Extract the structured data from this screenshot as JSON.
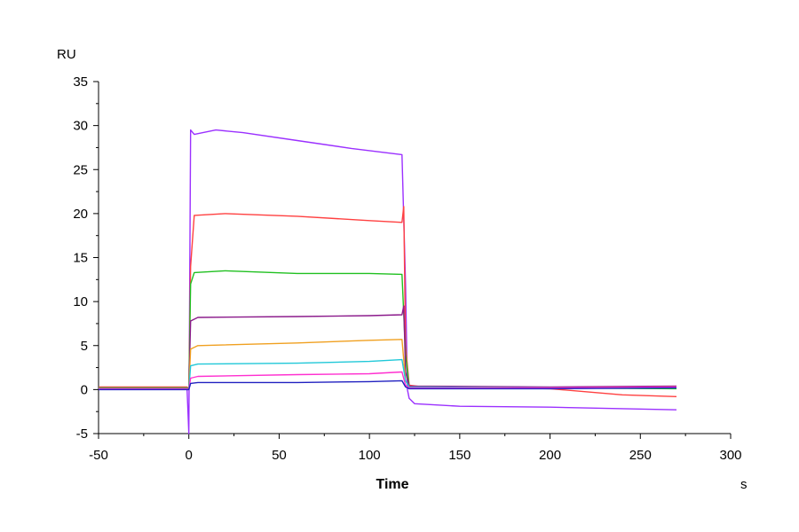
{
  "chart_data": {
    "type": "line",
    "xlabel": "Time",
    "x_unit": "s",
    "y_unit": "RU",
    "xlim": [
      -50,
      300
    ],
    "ylim": [
      -5,
      35
    ],
    "x_ticks": [
      "-50",
      "0",
      "50",
      "100",
      "150",
      "200",
      "250",
      "300"
    ],
    "y_ticks": [
      "-5",
      "0",
      "5",
      "10",
      "15",
      "20",
      "25",
      "30",
      "35"
    ],
    "grid": false,
    "legend": "none",
    "series": [
      {
        "color": "#9b30ff",
        "points": [
          [
            -50,
            0.2
          ],
          [
            -1,
            0.1
          ],
          [
            0,
            -5
          ],
          [
            1,
            29.5
          ],
          [
            3,
            29
          ],
          [
            15,
            29.5
          ],
          [
            30,
            29.2
          ],
          [
            60,
            28.3
          ],
          [
            90,
            27.4
          ],
          [
            118,
            26.7
          ],
          [
            120,
            12
          ],
          [
            121,
            0
          ],
          [
            122,
            -1
          ],
          [
            125,
            -1.6
          ],
          [
            150,
            -1.9
          ],
          [
            200,
            -2.0
          ],
          [
            270,
            -2.3
          ]
        ]
      },
      {
        "color": "#ff4040",
        "points": [
          [
            -50,
            0.3
          ],
          [
            -1,
            0.3
          ],
          [
            0,
            0
          ],
          [
            1,
            14
          ],
          [
            3,
            19.8
          ],
          [
            20,
            20.0
          ],
          [
            60,
            19.7
          ],
          [
            100,
            19.2
          ],
          [
            118,
            19.0
          ],
          [
            119,
            20.8
          ],
          [
            120,
            5
          ],
          [
            122,
            0.5
          ],
          [
            130,
            0.3
          ],
          [
            200,
            0.1
          ],
          [
            240,
            -0.6
          ],
          [
            270,
            -0.8
          ]
        ]
      },
      {
        "color": "#20c020",
        "points": [
          [
            -50,
            0.2
          ],
          [
            -1,
            0.2
          ],
          [
            0,
            0
          ],
          [
            1,
            12
          ],
          [
            3,
            13.3
          ],
          [
            20,
            13.5
          ],
          [
            60,
            13.2
          ],
          [
            100,
            13.2
          ],
          [
            118,
            13.1
          ],
          [
            120,
            4
          ],
          [
            122,
            0.3
          ],
          [
            200,
            0.2
          ],
          [
            270,
            0.1
          ]
        ]
      },
      {
        "color": "#8b1a8b",
        "points": [
          [
            -50,
            0.1
          ],
          [
            -1,
            0.1
          ],
          [
            0,
            0
          ],
          [
            1,
            7.8
          ],
          [
            5,
            8.2
          ],
          [
            60,
            8.3
          ],
          [
            100,
            8.4
          ],
          [
            118,
            8.5
          ],
          [
            119,
            9.5
          ],
          [
            120,
            2
          ],
          [
            122,
            0.4
          ],
          [
            200,
            0.3
          ],
          [
            270,
            0.4
          ]
        ]
      },
      {
        "color": "#f0a020",
        "points": [
          [
            -50,
            0.1
          ],
          [
            -1,
            0.1
          ],
          [
            0,
            0
          ],
          [
            1,
            4.6
          ],
          [
            5,
            5.0
          ],
          [
            60,
            5.3
          ],
          [
            100,
            5.6
          ],
          [
            118,
            5.7
          ],
          [
            120,
            1
          ],
          [
            122,
            0.3
          ],
          [
            200,
            0.2
          ],
          [
            270,
            0.3
          ]
        ]
      },
      {
        "color": "#20c8d8",
        "points": [
          [
            -50,
            0.1
          ],
          [
            -1,
            0.1
          ],
          [
            0,
            0
          ],
          [
            1,
            2.7
          ],
          [
            5,
            2.9
          ],
          [
            60,
            3.0
          ],
          [
            100,
            3.2
          ],
          [
            118,
            3.4
          ],
          [
            120,
            1
          ],
          [
            122,
            0.3
          ],
          [
            200,
            0.2
          ],
          [
            270,
            0.2
          ]
        ]
      },
      {
        "color": "#ff30d0",
        "points": [
          [
            -50,
            0.1
          ],
          [
            -1,
            0.1
          ],
          [
            0,
            0
          ],
          [
            1,
            1.3
          ],
          [
            5,
            1.5
          ],
          [
            60,
            1.7
          ],
          [
            100,
            1.8
          ],
          [
            118,
            2.0
          ],
          [
            120,
            0.5
          ],
          [
            122,
            0.2
          ],
          [
            200,
            0.2
          ],
          [
            270,
            0.3
          ]
        ]
      },
      {
        "color": "#2020c0",
        "points": [
          [
            -50,
            0.0
          ],
          [
            -1,
            0.0
          ],
          [
            0,
            0
          ],
          [
            1,
            0.7
          ],
          [
            5,
            0.8
          ],
          [
            60,
            0.8
          ],
          [
            100,
            0.9
          ],
          [
            118,
            1.0
          ],
          [
            120,
            0.3
          ],
          [
            122,
            0.1
          ],
          [
            200,
            0.1
          ],
          [
            270,
            0.2
          ]
        ]
      }
    ]
  }
}
